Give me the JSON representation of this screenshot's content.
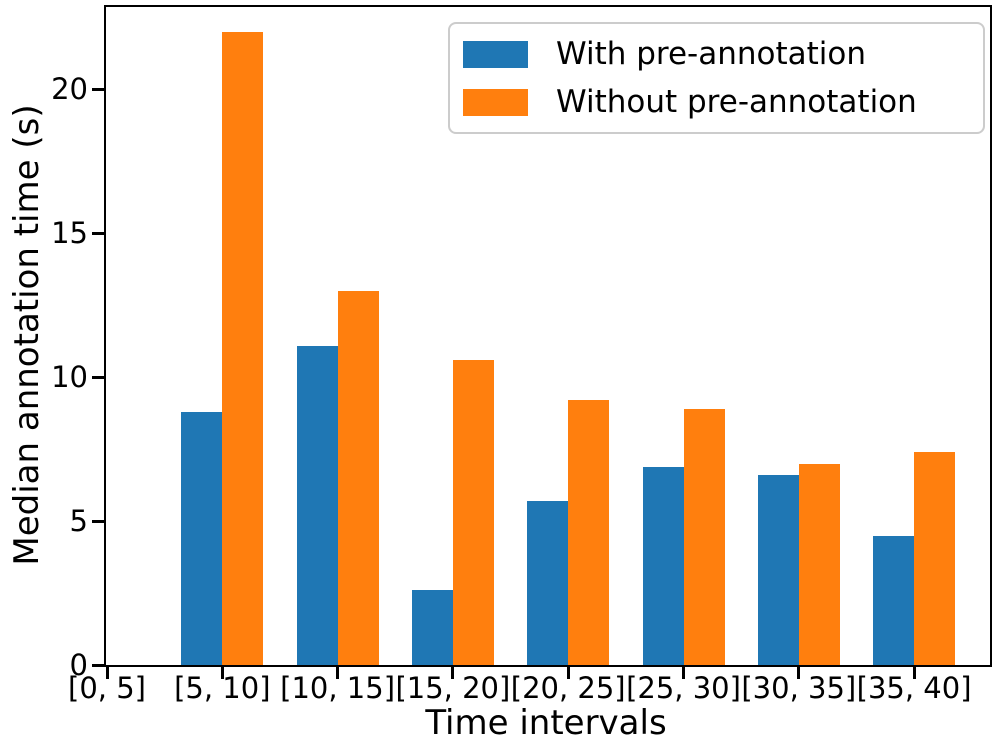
{
  "chart_data": {
    "type": "bar",
    "title": "",
    "xlabel": "Time intervals",
    "ylabel": "Median annotation time (s)",
    "categories": [
      "[0, 5]",
      "[5, 10]",
      "[10, 15]",
      "[15, 20]",
      "[20, 25]",
      "[25, 30]",
      "[30, 35]",
      "[35, 40]"
    ],
    "series": [
      {
        "name": "With pre-annotation",
        "color": "#1f77b4",
        "values": [
          0,
          8.8,
          11.1,
          2.6,
          5.7,
          6.9,
          6.6,
          4.5
        ]
      },
      {
        "name": "Without pre-annotation",
        "color": "#ff7f0e",
        "values": [
          0,
          22.0,
          13.0,
          10.6,
          9.2,
          8.9,
          7.0,
          7.4
        ]
      }
    ],
    "yticks": [
      0,
      5,
      10,
      15,
      20
    ],
    "ylim": [
      0,
      22.88
    ],
    "grid": false,
    "legend_position": "upper right",
    "axis_color": "#000000",
    "background_color": "#ffffff"
  }
}
